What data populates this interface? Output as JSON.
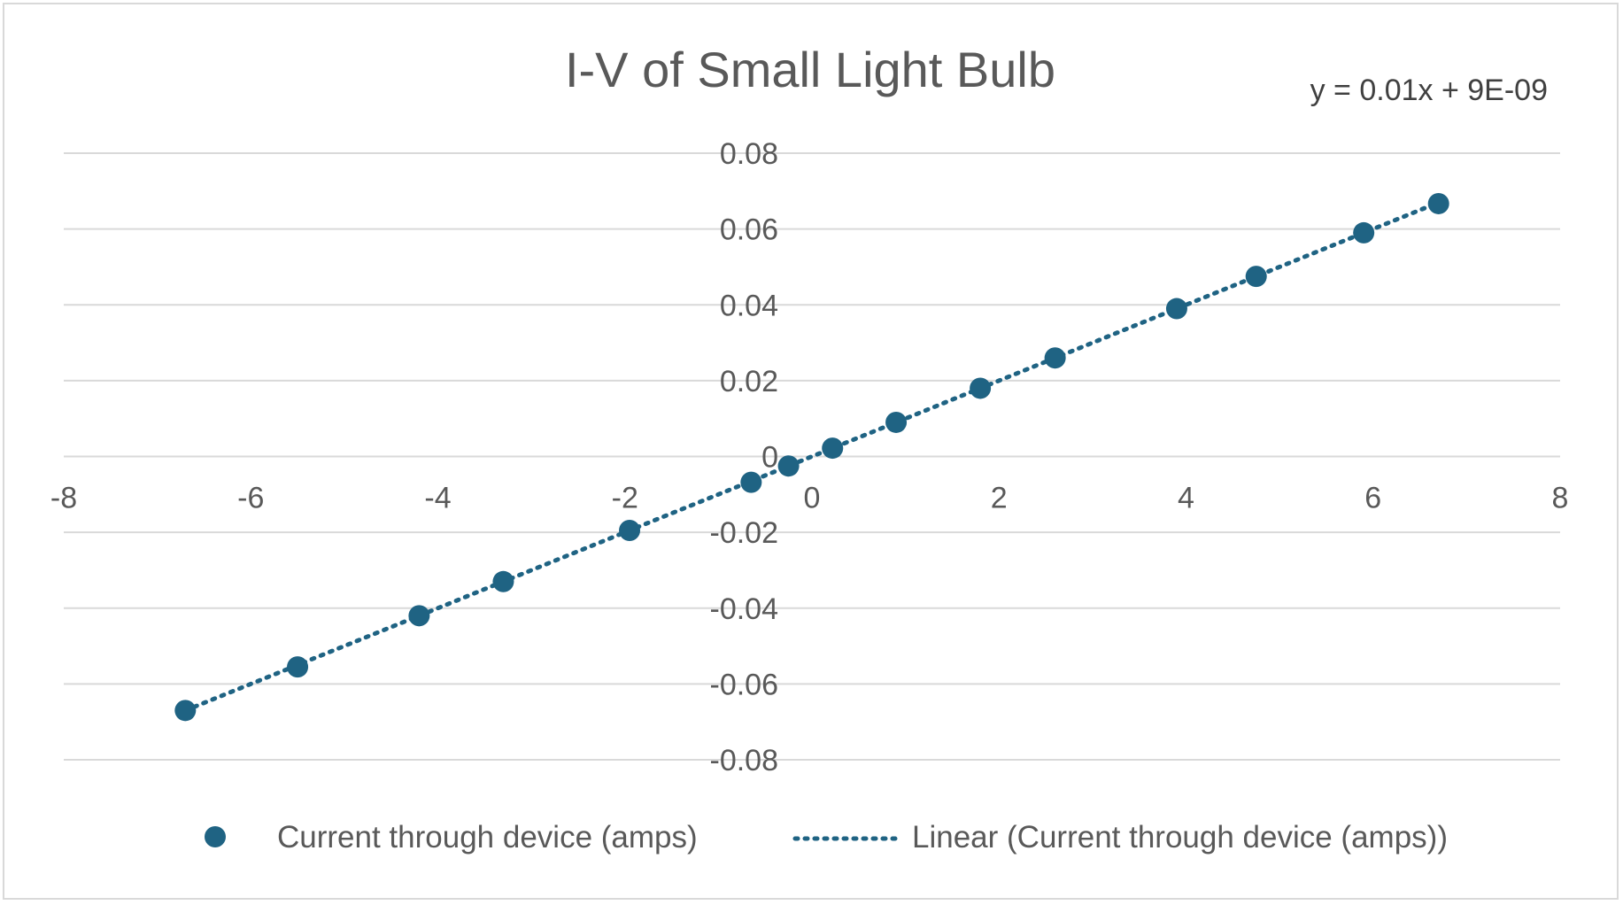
{
  "chart_data": {
    "type": "scatter",
    "title": "I-V of Small Light Bulb",
    "trendline_equation": "y = 0.01x + 9E-09",
    "xlim": [
      -8,
      8
    ],
    "ylim": [
      -0.08,
      0.08
    ],
    "x_ticks": [
      -8,
      -6,
      -4,
      -2,
      0,
      2,
      4,
      6,
      8
    ],
    "y_ticks": [
      0.08,
      0.06,
      0.04,
      0.02,
      0,
      -0.02,
      -0.04,
      -0.06,
      -0.08
    ],
    "x_tick_labels": [
      "-8",
      "-6",
      "-4",
      "-2",
      "0",
      "2",
      "4",
      "6",
      "8"
    ],
    "y_tick_labels": [
      "0.08",
      "0.06",
      "0.04",
      "0.02",
      "0",
      "-0.02",
      "-0.04",
      "-0.06",
      "-0.08"
    ],
    "grid": true,
    "legend_position": "bottom",
    "series": [
      {
        "name": "Current through device (amps)",
        "color": "#1f6383",
        "x": [
          -6.7,
          -5.5,
          -4.2,
          -3.3,
          -1.95,
          -0.65,
          -0.25,
          0.22,
          0.9,
          1.8,
          2.6,
          3.9,
          4.75,
          5.9,
          6.7
        ],
        "y": [
          -0.067,
          -0.0555,
          -0.042,
          -0.033,
          -0.0195,
          -0.0068,
          -0.0025,
          0.0022,
          0.009,
          0.018,
          0.026,
          0.039,
          0.0475,
          0.059,
          0.0667
        ]
      }
    ],
    "trendline": {
      "name": "Linear (Current through device (amps))",
      "slope": 0.01,
      "intercept": 9e-09,
      "x_range": [
        -6.7,
        6.7
      ],
      "color": "#1f6383",
      "style": "dotted"
    }
  }
}
